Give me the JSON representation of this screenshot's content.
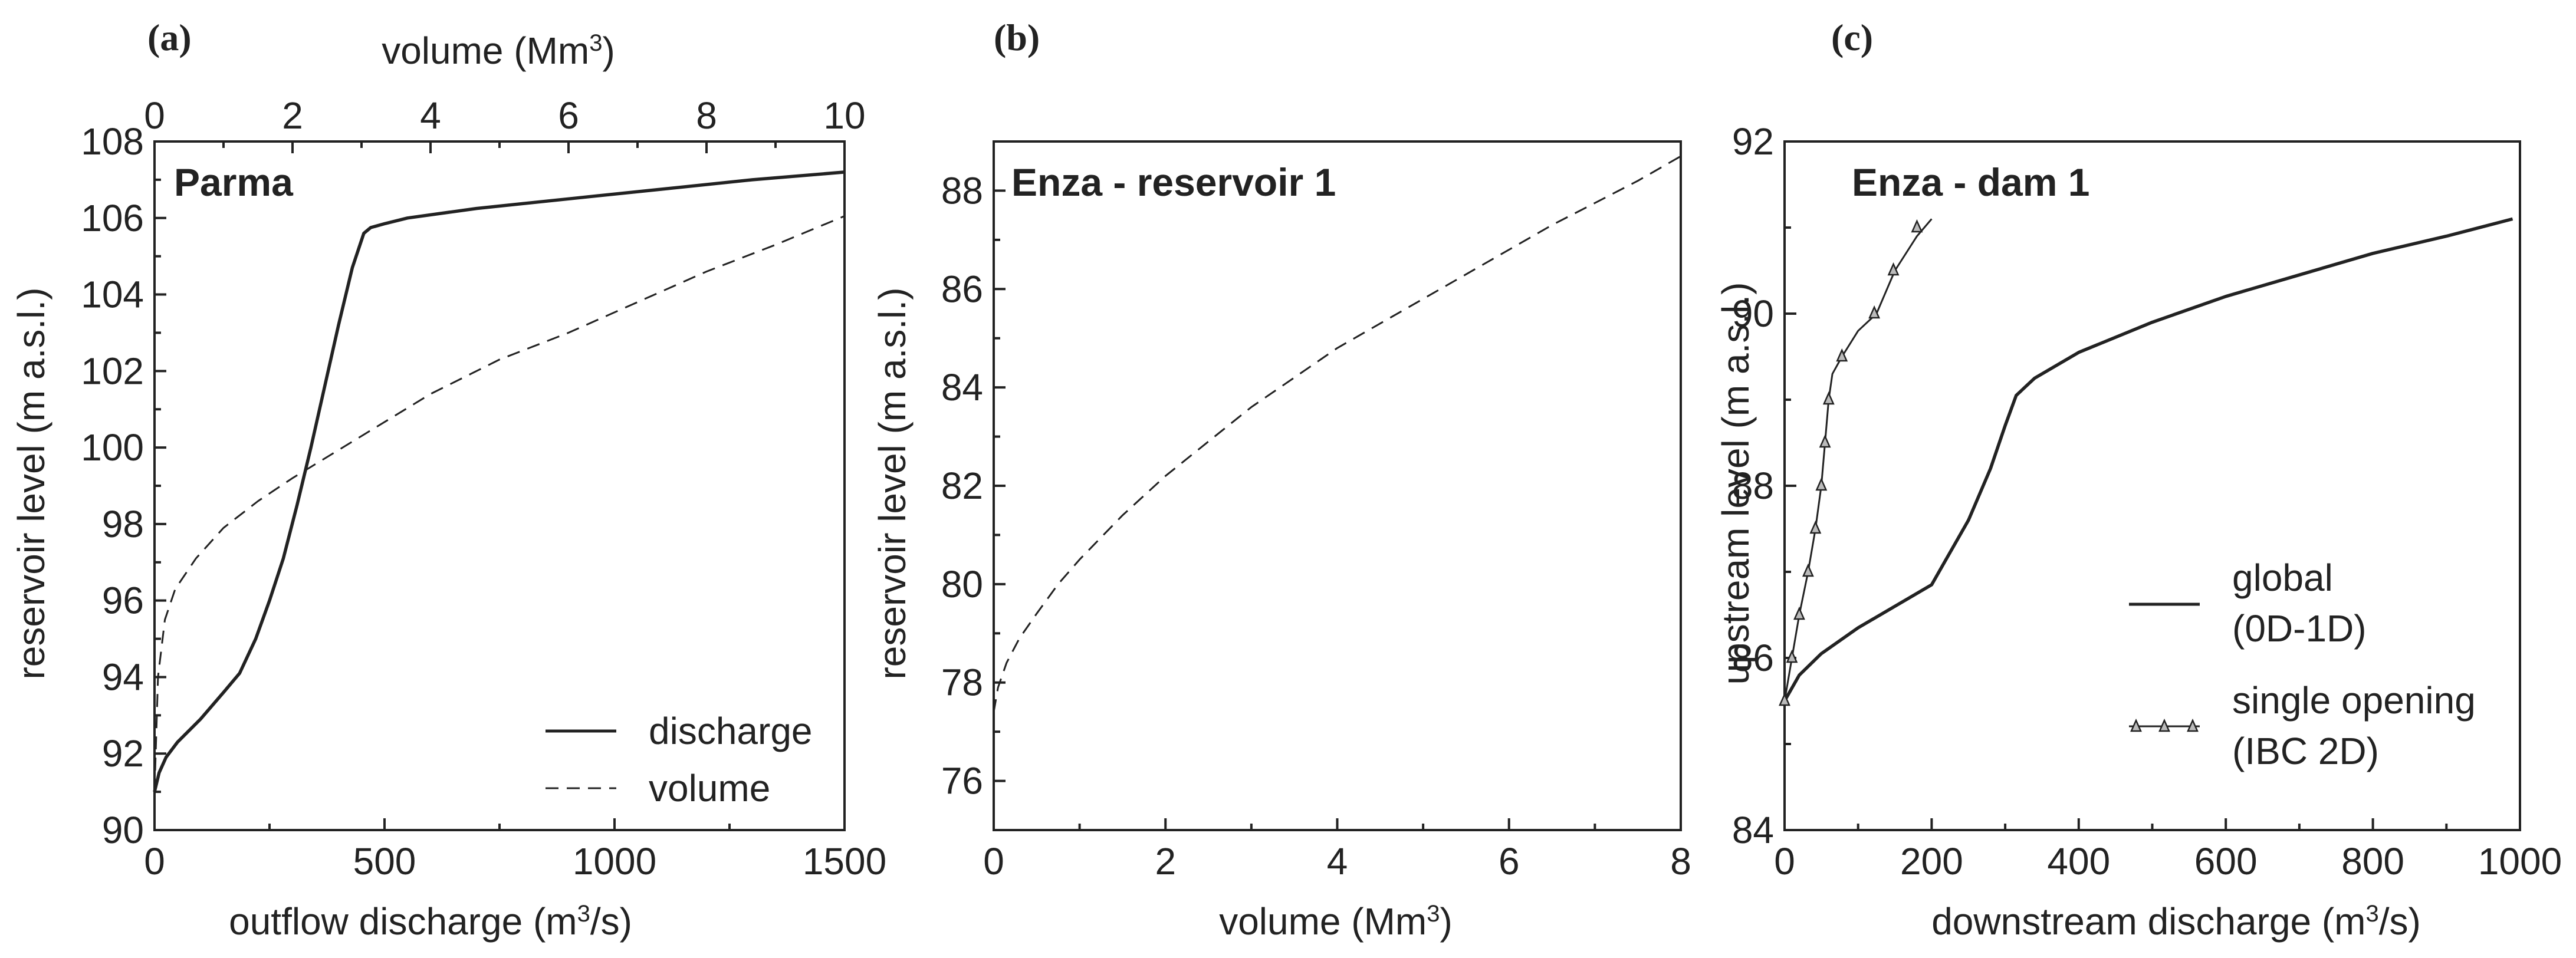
{
  "chart_data": [
    {
      "type": "line",
      "panel_label": "(a)",
      "title": "Parma",
      "xlabel": "outflow discharge (m³/s)",
      "x2label": "volume (Mm³)",
      "ylabel": "reservoir level (m a.s.l.)",
      "xlim": [
        0,
        1500
      ],
      "x2lim": [
        0,
        10
      ],
      "ylim": [
        90,
        108
      ],
      "xticks": [
        "0",
        "500",
        "1000",
        "1500"
      ],
      "x2ticks": [
        "0",
        "2",
        "4",
        "6",
        "8",
        "10"
      ],
      "yticks": [
        "90",
        "92",
        "94",
        "96",
        "98",
        "100",
        "102",
        "104",
        "106",
        "108"
      ],
      "legend_position": "bottom-right",
      "series": [
        {
          "name": "discharge",
          "style": "solid",
          "axis": "x",
          "x": [
            0,
            10,
            25,
            50,
            100,
            150,
            185,
            220,
            250,
            280,
            310,
            340,
            370,
            400,
            430,
            455,
            470,
            500,
            550,
            700,
            900,
            1100,
            1300,
            1500
          ],
          "y": [
            91.0,
            91.5,
            91.9,
            92.3,
            92.9,
            93.6,
            94.1,
            95.0,
            96.0,
            97.1,
            98.5,
            100.0,
            101.6,
            103.2,
            104.7,
            105.6,
            105.75,
            105.85,
            106.0,
            106.25,
            106.5,
            106.75,
            107.0,
            107.2
          ]
        },
        {
          "name": "volume",
          "style": "dashed",
          "axis": "x2",
          "x": [
            0,
            0.05,
            0.15,
            0.3,
            0.6,
            1.0,
            1.5,
            2.0,
            3.0,
            4.0,
            5.0,
            6.0,
            7.0,
            8.0,
            9.0,
            10.0
          ],
          "y": [
            91.0,
            94.0,
            95.5,
            96.3,
            97.1,
            97.9,
            98.6,
            99.2,
            100.3,
            101.4,
            102.3,
            103.0,
            103.8,
            104.6,
            105.3,
            106.05
          ]
        }
      ]
    },
    {
      "type": "line",
      "panel_label": "(b)",
      "title": "Enza - reservoir 1",
      "xlabel": "volume (Mm³)",
      "ylabel": "reservoir level (m a.s.l.)",
      "xlim": [
        0,
        8
      ],
      "ylim": [
        75,
        89
      ],
      "xticks": [
        "0",
        "2",
        "4",
        "6",
        "8"
      ],
      "yticks": [
        "76",
        "78",
        "80",
        "82",
        "84",
        "86",
        "88"
      ],
      "series": [
        {
          "style": "dashed",
          "x": [
            0,
            0.05,
            0.15,
            0.3,
            0.5,
            0.75,
            1.0,
            1.5,
            2.0,
            2.5,
            3.0,
            3.5,
            4.0,
            4.5,
            5.0,
            5.5,
            6.0,
            6.5,
            7.0,
            7.5,
            8.0
          ],
          "y": [
            77.4,
            77.9,
            78.4,
            78.9,
            79.4,
            80.0,
            80.5,
            81.4,
            82.2,
            82.9,
            83.6,
            84.2,
            84.8,
            85.3,
            85.8,
            86.3,
            86.8,
            87.3,
            87.75,
            88.2,
            88.7
          ]
        }
      ]
    },
    {
      "type": "line",
      "panel_label": "(c)",
      "title": "Enza - dam 1",
      "xlabel": "downstream discharge (m³/s)",
      "ylabel": "upstream level (m a.s.l.)",
      "xlim": [
        0,
        1000
      ],
      "ylim": [
        84,
        92
      ],
      "xticks": [
        "0",
        "200",
        "400",
        "600",
        "800",
        "1000"
      ],
      "yticks": [
        "84",
        "86",
        "88",
        "90",
        "92"
      ],
      "legend_position": "bottom-right",
      "legend": [
        {
          "line1": "global",
          "line2": "(0D-1D)"
        },
        {
          "line1": "single opening",
          "line2": "(IBC 2D)"
        }
      ],
      "series": [
        {
          "name": "global (0D-1D)",
          "style": "solid",
          "x": [
            0,
            20,
            50,
            100,
            150,
            200,
            220,
            250,
            280,
            300,
            315,
            340,
            400,
            500,
            600,
            700,
            800,
            900,
            990
          ],
          "y": [
            85.5,
            85.8,
            86.05,
            86.35,
            86.6,
            86.85,
            87.15,
            87.6,
            88.2,
            88.7,
            89.05,
            89.25,
            89.55,
            89.9,
            90.2,
            90.45,
            90.7,
            90.9,
            91.1
          ]
        },
        {
          "name": "single opening (IBC 2D)",
          "style": "solid-triangle-markers",
          "x": [
            0,
            10,
            20,
            32,
            42,
            50,
            55,
            60,
            65,
            78,
            100,
            125,
            150,
            180,
            200
          ],
          "y": [
            85.5,
            86.0,
            86.5,
            87.0,
            87.5,
            88.0,
            88.5,
            89.0,
            89.3,
            89.5,
            89.8,
            90.0,
            90.5,
            90.9,
            91.1
          ],
          "marker_x": [
            0,
            10,
            20,
            32,
            42,
            50,
            55,
            60,
            78,
            122,
            148,
            180
          ],
          "marker_y": [
            85.5,
            86.0,
            86.5,
            87.0,
            87.5,
            88.0,
            88.5,
            89.0,
            89.5,
            90.0,
            90.5,
            91.0
          ]
        }
      ]
    }
  ]
}
